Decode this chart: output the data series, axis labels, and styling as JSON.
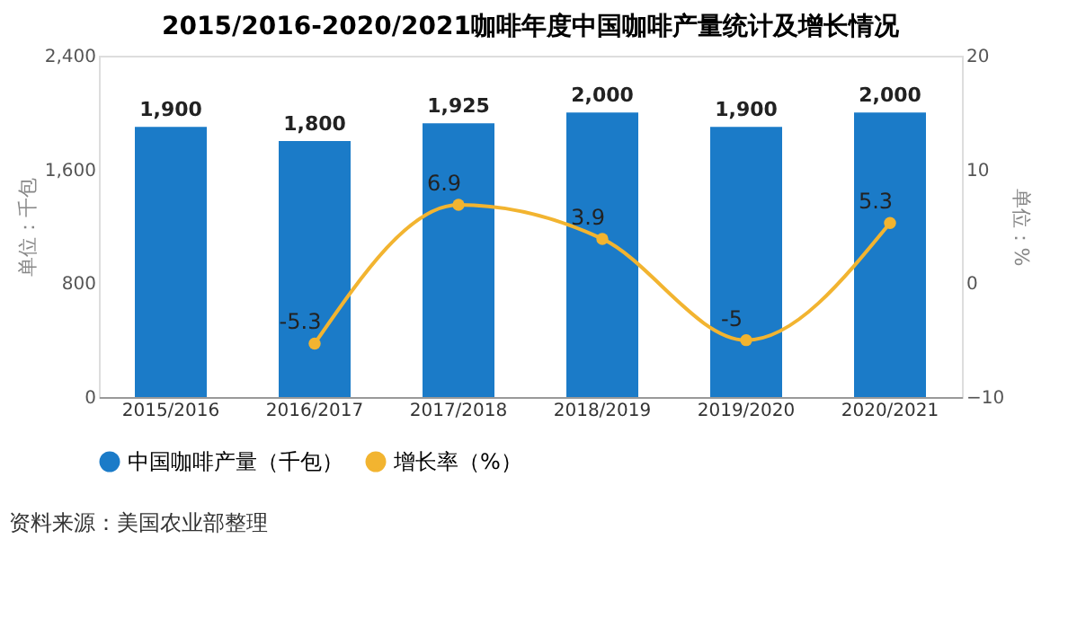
{
  "chart_data": {
    "type": "bar",
    "title": "2015/2016-2020/2021咖啡年度中国咖啡产量统计及增长情况",
    "categories": [
      "2015/2016",
      "2016/2017",
      "2017/2018",
      "2018/2019",
      "2019/2020",
      "2020/2021"
    ],
    "series": [
      {
        "name": "中国咖啡产量（千包）",
        "color": "#1b7bc8",
        "values": [
          1900,
          1800,
          1925,
          2000,
          1900,
          2000
        ],
        "value_labels": [
          "1,900",
          "1,800",
          "1,925",
          "2,000",
          "1,900",
          "2,000"
        ]
      },
      {
        "name": "增长率（%）",
        "type": "line",
        "axis": "y2",
        "color": "#f2b430",
        "marker": "circle",
        "values": [
          null,
          -5.3,
          6.9,
          3.9,
          -5,
          5.3
        ]
      }
    ],
    "ylabel": "单位：千包",
    "y2label": "单位：%",
    "ylim": [
      0,
      2400
    ],
    "yticks": [
      0,
      800,
      {
        "value": 1600,
        "label": "1,600"
      },
      {
        "value": 2400,
        "label": "2,400"
      }
    ],
    "y2lim": [
      -10,
      20
    ],
    "y2ticks": [
      -10,
      0,
      10,
      20
    ],
    "data_labels": true,
    "legend": "bottom",
    "grid": false,
    "annotations": [
      "资料来源：美国农业部整理"
    ]
  }
}
